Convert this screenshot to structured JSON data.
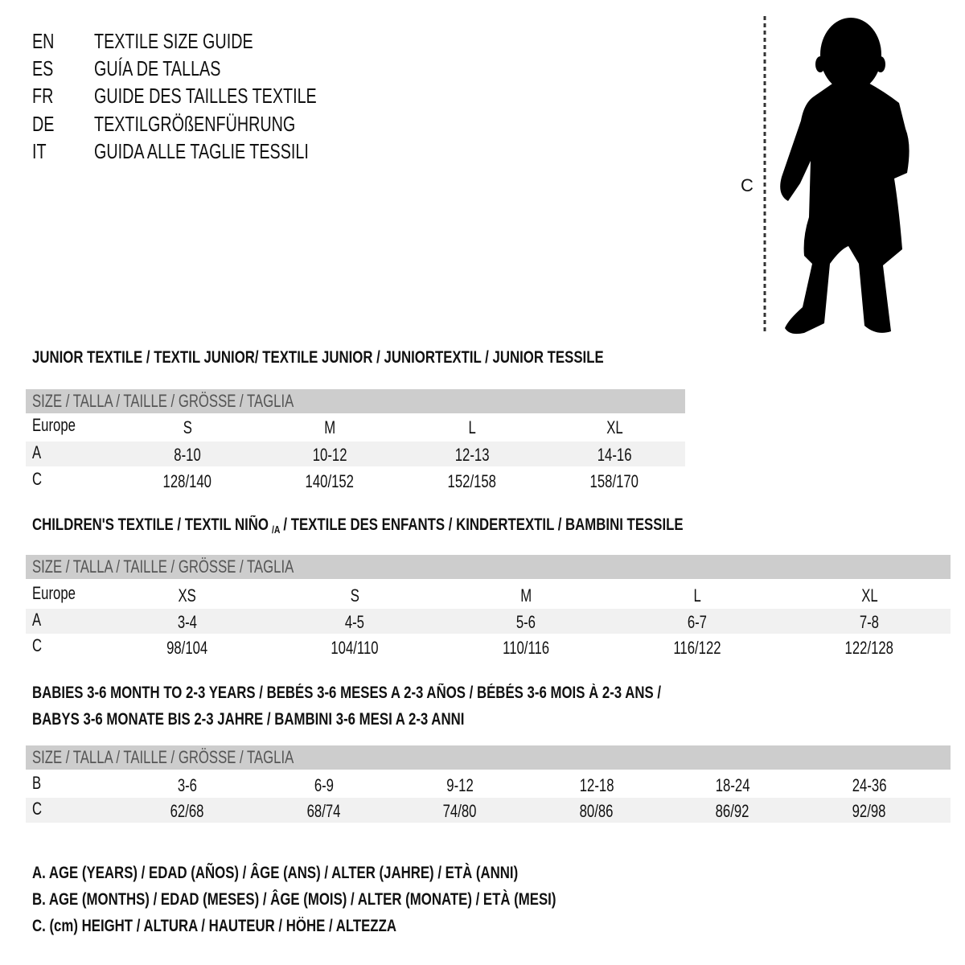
{
  "languages": [
    {
      "code": "EN",
      "title": "TEXTILE SIZE GUIDE"
    },
    {
      "code": "ES",
      "title": "GUÍA DE TALLAS"
    },
    {
      "code": "FR",
      "title": "GUIDE DES TAILLES TEXTILE"
    },
    {
      "code": "DE",
      "title": "TEXTILGRÖßENFÜHRUNG"
    },
    {
      "code": "IT",
      "title": "GUIDA ALLE TAGLIE TESSILI"
    }
  ],
  "figure": {
    "height_label": "C"
  },
  "tables": [
    {
      "heading": "JUNIOR TEXTILE / TEXTIL JUNIOR/ TEXTILE JUNIOR / JUNIORTEXTIL / JUNIOR TESSILE",
      "size_header": "SIZE / TALLA / TAILLE / GRÖSSE / TAGLIA",
      "rows": [
        {
          "label": "Europe",
          "values": [
            "S",
            "M",
            "L",
            "XL"
          ]
        },
        {
          "label": "A",
          "values": [
            "8-10",
            "10-12",
            "12-13",
            "14-16"
          ]
        },
        {
          "label": "C",
          "values": [
            "128/140",
            "140/152",
            "152/158",
            "158/170"
          ]
        }
      ]
    },
    {
      "heading_parts": [
        "CHILDREN'S TEXTILE / TEXTIL NIÑO",
        "/A",
        " / TEXTILE DES ENFANTS / KINDERTEXTIL / BAMBINI TESSILE"
      ],
      "size_header": "SIZE / TALLA / TAILLE / GRÖSSE / TAGLIA",
      "rows": [
        {
          "label": "Europe",
          "values": [
            "XS",
            "S",
            "M",
            "L",
            "XL"
          ]
        },
        {
          "label": "A",
          "values": [
            "3-4",
            "4-5",
            "5-6",
            "6-7",
            "7-8"
          ]
        },
        {
          "label": "C",
          "values": [
            "98/104",
            "104/110",
            "110/116",
            "116/122",
            "122/128"
          ]
        }
      ]
    },
    {
      "heading_lines": [
        "BABIES 3-6 MONTH TO 2-3 YEARS / BEBÉS 3-6 MESES A 2-3 AÑOS / BÉBÉS 3-6 MOIS À 2-3 ANS /",
        "BABYS 3-6 MONATE BIS 2-3 JAHRE / BAMBINI 3-6 MESI A 2-3 ANNI"
      ],
      "size_header": "SIZE / TALLA / TAILLE / GRÖSSE / TAGLIA",
      "rows": [
        {
          "label": "B",
          "values": [
            "3-6",
            "6-9",
            "9-12",
            "12-18",
            "18-24",
            "24-36"
          ]
        },
        {
          "label": "C",
          "values": [
            "62/68",
            "68/74",
            "74/80",
            "80/86",
            "86/92",
            "92/98"
          ]
        }
      ]
    }
  ],
  "legend": [
    "A. AGE (YEARS) / EDAD (AÑOS) / ÂGE (ANS) / ALTER (JAHRE) / ETÀ (ANNI)",
    "B. AGE (MONTHS) / EDAD (MESES) / ÂGE (MOIS) / ALTER (MONATE) / ETÀ (MESI)",
    "C. (cm) HEIGHT / ALTURA / HAUTEUR / HÖHE / ALTEZZA"
  ],
  "colors": {
    "header_bar": "#cdcdcd",
    "stripe": "#f1f1f1",
    "text": "#111111",
    "header_text": "#555555"
  }
}
